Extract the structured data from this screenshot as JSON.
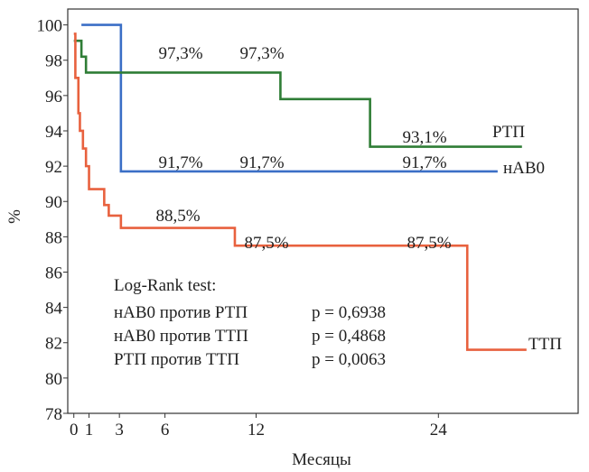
{
  "chart_data": {
    "type": "step",
    "xlabel": "Месяцы",
    "ylabel": "%",
    "xlim": [
      -0.4,
      33.2
    ],
    "ylim": [
      78,
      100.9
    ],
    "xticks": [
      0,
      1,
      3,
      6,
      12,
      24
    ],
    "yticks": [
      78,
      80,
      82,
      84,
      86,
      88,
      90,
      92,
      94,
      96,
      98,
      100
    ],
    "series": [
      {
        "name": "нАВ0",
        "color": "#3b6fc6",
        "x": [
          0.5,
          3.1,
          27.9
        ],
        "values": [
          100,
          91.7,
          91.7
        ]
      },
      {
        "name": "РТП",
        "color": "#2f7d36",
        "x": [
          0,
          0.5,
          0.8,
          13.6,
          19.5,
          29.5
        ],
        "values": [
          99.1,
          98.2,
          97.3,
          95.8,
          93.1,
          93.1
        ]
      },
      {
        "name": "ТТП",
        "color": "#e8613e",
        "x": [
          0,
          0.1,
          0.3,
          0.4,
          0.6,
          0.8,
          1.0,
          2.0,
          2.3,
          3.1,
          10.6,
          25.9,
          29.8
        ],
        "values": [
          99.5,
          97,
          95,
          94,
          93,
          92,
          90.7,
          89.8,
          89.2,
          88.5,
          87.5,
          81.6,
          81.6
        ]
      }
    ],
    "annotations": [
      "97,3%",
      "97,3%",
      "93,1%",
      "91,7%",
      "91,7%",
      "91,7%",
      "88,5%",
      "87,5%",
      "87,5%"
    ],
    "stats": {
      "title": "Log-Rank test:",
      "rows": [
        [
          "нАВ0 против РТП",
          "p = 0,6938"
        ],
        [
          "нАВ0 против ТТП",
          "p = 0,4868"
        ],
        [
          "РТП против ТТП",
          "p = 0,0063"
        ]
      ]
    }
  }
}
